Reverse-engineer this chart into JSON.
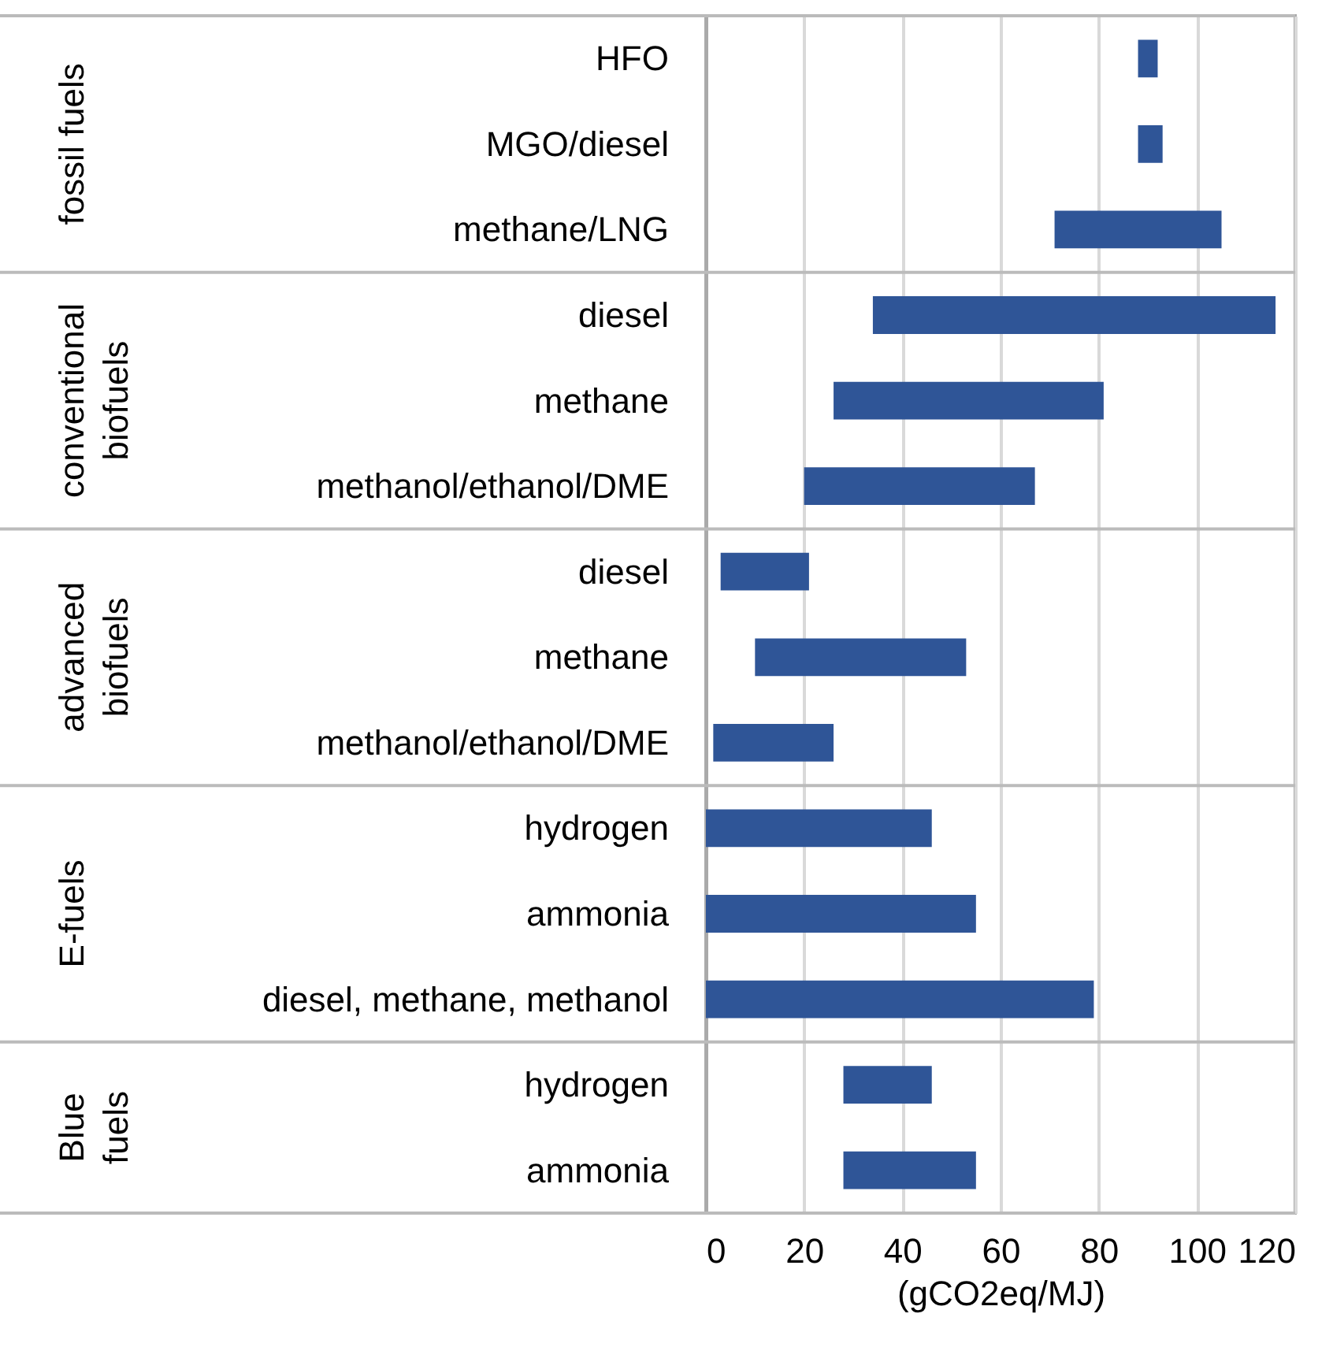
{
  "chart_data": {
    "type": "bar",
    "orientation": "horizontal",
    "xlabel": "(gCO2eq/MJ)",
    "categories": [
      "HFO",
      "MGO/diesel",
      "methane/LNG",
      "diesel",
      "methane",
      "methanol/ethanol/DME",
      "diesel",
      "methane",
      "methanol/ethanol/DME",
      "hydrogen",
      "ammonia",
      "diesel, methane, methanol",
      "hydrogen",
      "ammonia"
    ],
    "base": [
      88,
      88,
      71,
      34,
      26,
      20,
      3,
      10,
      1.5,
      0,
      0,
      0,
      28,
      28
    ],
    "values": [
      4,
      5,
      34,
      82,
      55,
      47,
      18,
      43,
      24.5,
      46,
      55,
      79,
      18,
      27
    ],
    "color": "#2f5597",
    "xlim": [
      0,
      120
    ],
    "xticks": [
      0,
      20,
      40,
      60,
      80,
      100,
      120
    ],
    "grid": "x",
    "annotations": [
      "fossil fuels",
      "conventional\nbiofuels",
      "advanced\nbiofuels",
      "E-fuels",
      "Blue\nfuels"
    ]
  }
}
